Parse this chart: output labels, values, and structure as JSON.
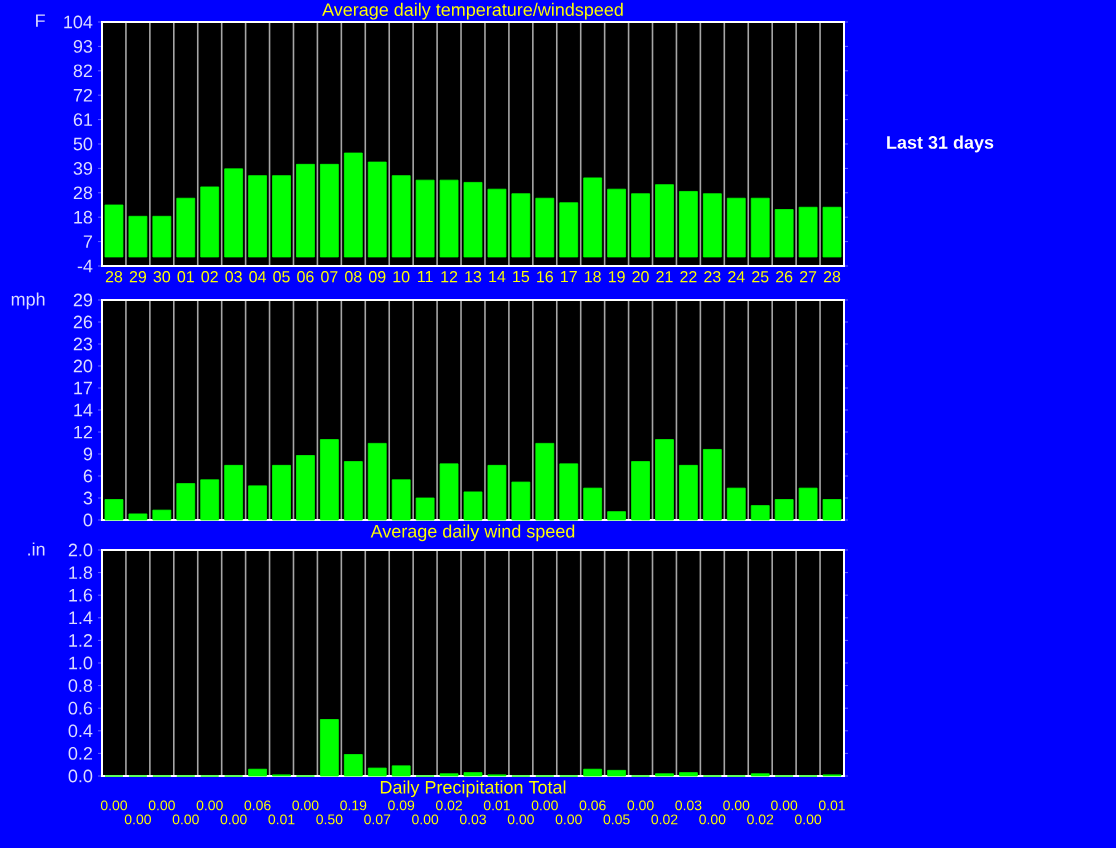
{
  "chart_data": [
    {
      "type": "bar",
      "title": "Average daily temperature/windspeed",
      "ylabel": "F",
      "categories": [
        "28",
        "29",
        "30",
        "01",
        "02",
        "03",
        "04",
        "05",
        "06",
        "07",
        "08",
        "09",
        "10",
        "11",
        "12",
        "13",
        "14",
        "15",
        "16",
        "17",
        "18",
        "19",
        "20",
        "21",
        "22",
        "23",
        "24",
        "25",
        "26",
        "27",
        "28"
      ],
      "values": [
        23,
        18,
        18,
        26,
        31,
        39,
        36,
        36,
        41,
        41,
        46,
        42,
        36,
        34,
        34,
        33,
        30,
        28,
        26,
        24,
        35,
        30,
        28,
        32,
        29,
        28,
        26,
        26,
        21,
        22,
        22
      ],
      "color": "#00ff00",
      "ylim": [
        -4,
        104
      ],
      "yticks": [
        -4,
        {
          "value": 6.8,
          "label": "7"
        },
        {
          "value": 17.6,
          "label": "18"
        },
        {
          "value": 28.4,
          "label": "28"
        },
        {
          "value": 39.2,
          "label": "39"
        },
        50,
        {
          "value": 60.8,
          "label": "61"
        },
        {
          "value": 71.6,
          "label": "72"
        },
        {
          "value": 82.4,
          "label": "82"
        },
        {
          "value": 93.2,
          "label": "93"
        },
        104
      ],
      "grid": "x",
      "annotations": [
        "Last 31 days"
      ]
    },
    {
      "type": "bar",
      "xlabel": "Average daily wind speed",
      "ylabel": "mph",
      "categories": [
        "28",
        "29",
        "30",
        "01",
        "02",
        "03",
        "04",
        "05",
        "06",
        "07",
        "08",
        "09",
        "10",
        "11",
        "12",
        "13",
        "14",
        "15",
        "16",
        "17",
        "18",
        "19",
        "20",
        "21",
        "22",
        "23",
        "24",
        "25",
        "26",
        "27",
        "28"
      ],
      "values": [
        2.7,
        0.8,
        1.3,
        4.8,
        5.3,
        7.2,
        4.5,
        7.2,
        8.5,
        10.6,
        7.7,
        10.1,
        5.3,
        2.9,
        7.4,
        3.7,
        7.2,
        5,
        10.1,
        7.4,
        4.2,
        1.1,
        7.7,
        10.6,
        7.2,
        9.3,
        4.2,
        1.9,
        2.7,
        4.2,
        2.7
      ],
      "color": "#00ff00",
      "ylim": [
        0,
        29
      ],
      "yticks": [
        0,
        {
          "value": 2.9,
          "label": "3"
        },
        {
          "value": 5.8,
          "label": "6"
        },
        {
          "value": 8.7,
          "label": "9"
        },
        {
          "value": 11.6,
          "label": "12"
        },
        {
          "value": 14.5,
          "label": "14"
        },
        {
          "value": 17.4,
          "label": "17"
        },
        {
          "value": 20.3,
          "label": "20"
        },
        {
          "value": 23.2,
          "label": "23"
        },
        {
          "value": 26.1,
          "label": "26"
        },
        29
      ],
      "grid": "x",
      "tick_labels": "y"
    },
    {
      "type": "bar",
      "xlabel": "Daily Precipitation Total",
      "ylabel": ".in",
      "categories": [
        "28",
        "29",
        "30",
        "01",
        "02",
        "03",
        "04",
        "05",
        "06",
        "07",
        "08",
        "09",
        "10",
        "11",
        "12",
        "13",
        "14",
        "15",
        "16",
        "17",
        "18",
        "19",
        "20",
        "21",
        "22",
        "23",
        "24",
        "25",
        "26",
        "27",
        "28"
      ],
      "values": [
        0,
        0,
        0,
        0,
        0,
        0,
        0.06,
        0.01,
        0,
        0.5,
        0.19,
        0.07,
        0.09,
        0,
        0.02,
        0.03,
        0.01,
        0,
        0,
        0,
        0.06,
        0.05,
        0,
        0.02,
        0.03,
        0,
        0,
        0.02,
        0,
        0,
        0.01
      ],
      "value_labels": [
        "0.00",
        "0.00",
        "0.00",
        "0.00",
        "0.00",
        "0.00",
        "0.06",
        "0.01",
        "0.00",
        "0.50",
        "0.19",
        "0.07",
        "0.09",
        "0.00",
        "0.02",
        "0.03",
        "0.01",
        "0.00",
        "0.00",
        "0.00",
        "0.06",
        "0.05",
        "0.00",
        "0.02",
        "0.03",
        "0.00",
        "0.00",
        "0.02",
        "0.00",
        "0.00",
        "0.01"
      ],
      "color": "#00ff00",
      "ylim": [
        0,
        2
      ],
      "yticks": [
        {
          "value": 0,
          "label": "0.0"
        },
        {
          "value": 0.2,
          "label": "0.2"
        },
        {
          "value": 0.4,
          "label": "0.4"
        },
        {
          "value": 0.6,
          "label": "0.6"
        },
        {
          "value": 0.8,
          "label": "0.8"
        },
        {
          "value": 1,
          "label": "1.0"
        },
        {
          "value": 1.2,
          "label": "1.2"
        },
        {
          "value": 1.4,
          "label": "1.4"
        },
        {
          "value": 1.6,
          "label": "1.6"
        },
        {
          "value": 1.8,
          "label": "1.8"
        },
        {
          "value": 2,
          "label": "2.0"
        }
      ],
      "grid": "x",
      "tick_labels": "y"
    }
  ]
}
